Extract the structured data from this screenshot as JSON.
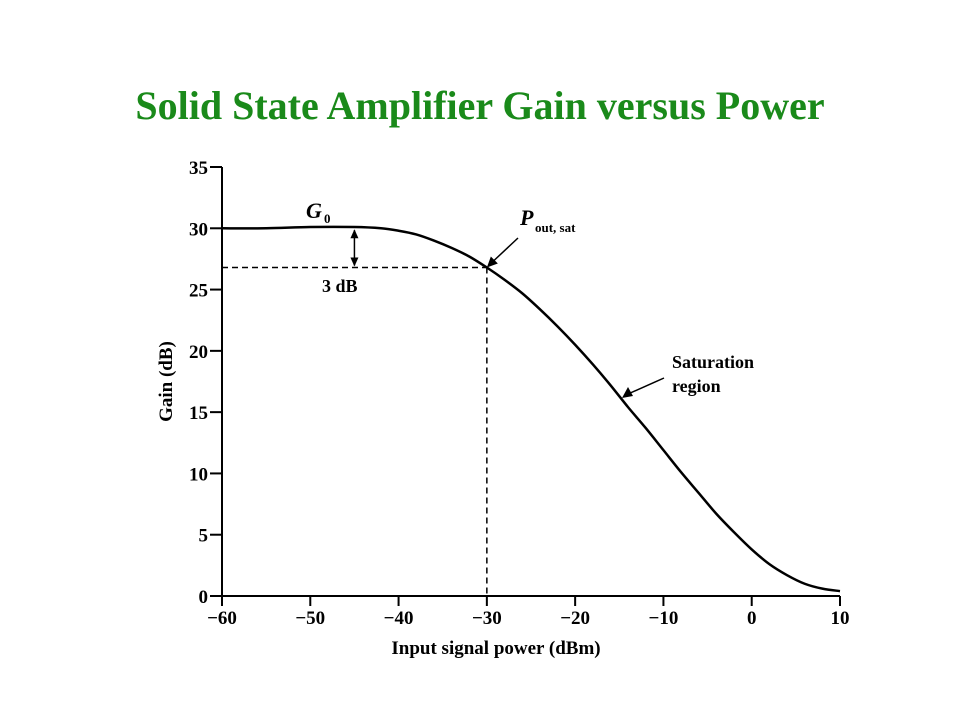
{
  "title": "Solid State Amplifier Gain versus Power",
  "colors": {
    "title": "#1a8a1a",
    "ink": "#000000"
  },
  "chart_data": {
    "type": "line",
    "xlabel": "Input signal power (dBm)",
    "ylabel": "Gain (dB)",
    "xlim": [
      -60,
      10
    ],
    "ylim": [
      0,
      35
    ],
    "x_ticks": [
      -60,
      -50,
      -40,
      -30,
      -20,
      -10,
      0,
      10
    ],
    "x_tick_labels": [
      "−60",
      "−50",
      "−40",
      "−30",
      "−20",
      "−10",
      "0",
      "10"
    ],
    "y_ticks": [
      0,
      5,
      10,
      15,
      20,
      25,
      30,
      35
    ],
    "y_tick_labels": [
      "0",
      "5",
      "10",
      "15",
      "20",
      "25",
      "30",
      "35"
    ],
    "grid": false,
    "series": [
      {
        "x": [
          -60,
          -55,
          -50,
          -45,
          -42,
          -40,
          -38,
          -36,
          -34,
          -32,
          -30,
          -28,
          -26,
          -24,
          -22,
          -20,
          -18,
          -16,
          -14,
          -12,
          -10,
          -8,
          -6,
          -4,
          -2,
          0,
          2,
          4,
          6,
          8,
          10
        ],
        "y": [
          30,
          30,
          30.1,
          30.1,
          30,
          29.8,
          29.5,
          29,
          28.4,
          27.7,
          26.8,
          25.8,
          24.7,
          23.4,
          22,
          20.5,
          18.9,
          17.2,
          15.4,
          13.7,
          11.9,
          10.1,
          8.4,
          6.7,
          5.2,
          3.8,
          2.6,
          1.7,
          1.0,
          0.6,
          0.4
        ]
      }
    ],
    "annotations": {
      "g0_main": "G",
      "g0_sub": "0",
      "delta_label": "3 dB",
      "psat_main": "P",
      "psat_sub": "out, sat",
      "saturation_line1": "Saturation",
      "saturation_line2": "region"
    },
    "reference_lines": {
      "gain_at_saturation": 26.8,
      "input_at_saturation": -30,
      "small_signal_gain": 30
    }
  }
}
